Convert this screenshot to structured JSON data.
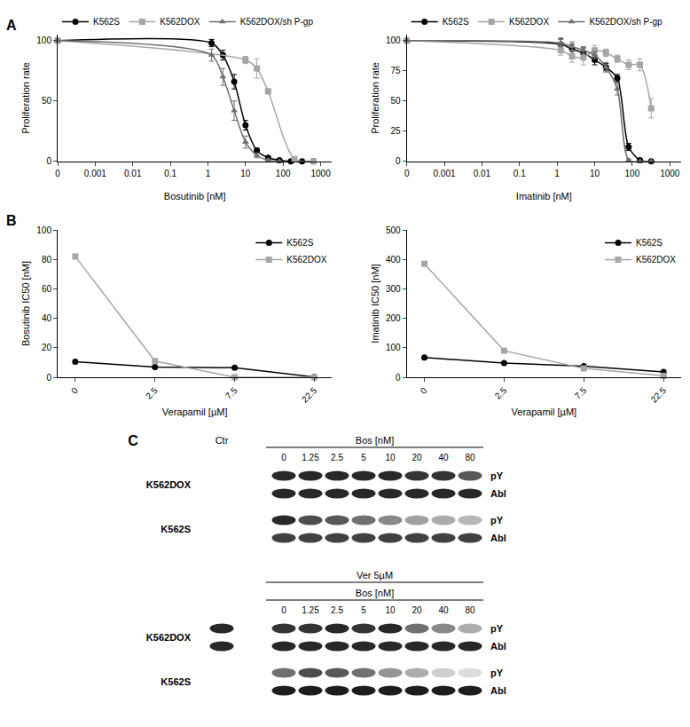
{
  "chart_data": [
    {
      "panel": "A",
      "type": "line",
      "x_label": "Bosutinib [nM]",
      "y_label": "Proliferation rate",
      "log": "x",
      "grid": false,
      "legend": "top",
      "line_style": "smooth",
      "xlim": [
        0.0001,
        2000
      ],
      "xticks": [
        {
          "value": 0.0001,
          "label": "0"
        },
        0.001,
        0.01,
        0.1,
        1,
        10,
        100,
        1000
      ],
      "ylim": [
        0,
        105
      ],
      "yticks": [
        0,
        50,
        100
      ],
      "series": [
        {
          "name": "K562S",
          "color": "#000000",
          "marker": "circle",
          "x": [
            0.0001,
            1.25,
            2.5,
            5,
            10,
            20,
            40,
            80,
            160,
            320,
            640
          ],
          "values": [
            100,
            98,
            88,
            66,
            30,
            9,
            3,
            1,
            0,
            0,
            0
          ],
          "errors": [
            0,
            3,
            4,
            6,
            4,
            2,
            1,
            1,
            0,
            0,
            0
          ]
        },
        {
          "name": "K562DOX",
          "color": "#a6a6a6",
          "marker": "square",
          "x": [
            0.0001,
            10,
            20,
            40,
            200,
            640
          ],
          "values": [
            100,
            84,
            77,
            58,
            2,
            0
          ],
          "errors": [
            0,
            3,
            8,
            2,
            1,
            0
          ]
        },
        {
          "name": "K562DOX/sh P-gp",
          "color": "#6e6e6e",
          "marker": "triangle",
          "x": [
            0.0001,
            1.25,
            2.5,
            5,
            10,
            20,
            40,
            80
          ],
          "values": [
            100,
            88,
            70,
            42,
            16,
            5,
            1,
            0
          ],
          "errors": [
            0,
            5,
            7,
            8,
            5,
            2,
            1,
            0
          ]
        }
      ]
    },
    {
      "panel": "A",
      "type": "line",
      "x_label": "Imatinib [nM]",
      "y_label": "Proliferation rate",
      "log": "x",
      "grid": false,
      "legend": "top",
      "line_style": "smooth",
      "xlim": [
        0.0001,
        2000
      ],
      "xticks": [
        {
          "value": 0.0001,
          "label": "0"
        },
        0.001,
        0.01,
        0.1,
        1,
        10,
        100,
        1000
      ],
      "ylim": [
        0,
        105
      ],
      "yticks": [
        0,
        25,
        50,
        75,
        100
      ],
      "series": [
        {
          "name": "K562S",
          "color": "#000000",
          "marker": "circle",
          "x": [
            0.0001,
            1.25,
            2.5,
            5,
            10,
            20,
            40,
            80,
            160,
            320
          ],
          "values": [
            100,
            97,
            93,
            90,
            84,
            78,
            69,
            12,
            1,
            0
          ],
          "errors": [
            0,
            5,
            4,
            4,
            4,
            3,
            3,
            3,
            1,
            0
          ]
        },
        {
          "name": "K562DOX",
          "color": "#a6a6a6",
          "marker": "square",
          "x": [
            0.0001,
            1.25,
            2.5,
            5,
            10,
            20,
            40,
            80,
            160,
            320
          ],
          "values": [
            100,
            92,
            87,
            86,
            92,
            90,
            85,
            80,
            80,
            44
          ],
          "errors": [
            0,
            4,
            5,
            6,
            4,
            3,
            3,
            4,
            5,
            8
          ]
        },
        {
          "name": "K562DOX/sh P-gp",
          "color": "#6e6e6e",
          "marker": "triangle",
          "x": [
            0.0001,
            1.25,
            2.5,
            5,
            10,
            20,
            40,
            80,
            160,
            320
          ],
          "values": [
            100,
            98,
            95,
            92,
            88,
            78,
            60,
            1,
            0,
            0
          ],
          "errors": [
            0,
            3,
            4,
            3,
            3,
            4,
            5,
            1,
            0,
            0
          ]
        }
      ]
    },
    {
      "panel": "B",
      "type": "line",
      "x_label": "Verapamil [µM]",
      "y_label": "Bosutinib IC50 [nM]",
      "grid": false,
      "legend": "upper right",
      "line_style": "straight",
      "categories": [
        "0",
        "2.5",
        "7.5",
        "22.5"
      ],
      "ylim": [
        0,
        100
      ],
      "yticks": [
        0,
        20,
        40,
        60,
        80,
        100
      ],
      "series": [
        {
          "name": "K562S",
          "color": "#000000",
          "marker": "circle",
          "values": [
            10.5,
            7,
            6.5,
            0.2
          ]
        },
        {
          "name": "K562DOX",
          "color": "#a6a6a6",
          "marker": "square",
          "values": [
            82,
            11,
            0,
            0
          ]
        }
      ]
    },
    {
      "panel": "B",
      "type": "line",
      "x_label": "Verapamil [µM]",
      "y_label": "Imatinib IC50 [nM]",
      "grid": false,
      "legend": "upper right",
      "line_style": "straight",
      "categories": [
        "0",
        "2.5",
        "7.5",
        "22.5"
      ],
      "ylim": [
        0,
        500
      ],
      "yticks": [
        0,
        100,
        200,
        300,
        400,
        500
      ],
      "series": [
        {
          "name": "K562S",
          "color": "#000000",
          "marker": "circle",
          "values": [
            67,
            48,
            38,
            18
          ]
        },
        {
          "name": "K562DOX",
          "color": "#a6a6a6",
          "marker": "square",
          "values": [
            385,
            90,
            30,
            5
          ]
        }
      ]
    }
  ],
  "blot": {
    "panel": "C",
    "control_label": "Ctr",
    "groups": [
      {
        "header": "Bos [nM]",
        "doses": [
          0,
          1.25,
          2.5,
          5,
          10,
          20,
          40,
          80
        ],
        "show_control_label": true,
        "rows": [
          {
            "cell_line": "K562DOX",
            "bands": [
              {
                "label": "pY",
                "intensity": [
                  null,
                  0.9,
                  0.9,
                  0.9,
                  0.9,
                  0.9,
                  0.85,
                  0.85,
                  0.7
                ]
              },
              {
                "label": "Abl",
                "intensity": [
                  null,
                  0.9,
                  0.9,
                  0.9,
                  0.9,
                  0.9,
                  0.9,
                  0.9,
                  0.9
                ]
              }
            ]
          },
          {
            "cell_line": "K562S",
            "bands": [
              {
                "label": "pY",
                "intensity": [
                  null,
                  0.9,
                  0.75,
                  0.7,
                  0.6,
                  0.5,
                  0.4,
                  0.35,
                  0.3
                ]
              },
              {
                "label": "Abl",
                "intensity": [
                  null,
                  0.8,
                  0.8,
                  0.8,
                  0.8,
                  0.8,
                  0.8,
                  0.8,
                  0.8
                ]
              }
            ]
          }
        ]
      },
      {
        "treatment": "Ver 5µM",
        "header": "Bos [nM]",
        "doses": [
          0,
          1.25,
          2.5,
          5,
          10,
          20,
          40,
          80
        ],
        "show_control_label": false,
        "rows": [
          {
            "cell_line": "K562DOX",
            "bands": [
              {
                "label": "pY",
                "intensity": [
                  0.9,
                  0.85,
                  0.85,
                  0.9,
                  0.85,
                  0.9,
                  0.6,
                  0.5,
                  0.35
                ]
              },
              {
                "label": "Abl",
                "intensity": [
                  0.9,
                  0.9,
                  0.9,
                  0.9,
                  0.9,
                  0.9,
                  0.9,
                  0.9,
                  0.9
                ]
              }
            ]
          },
          {
            "cell_line": "K562S",
            "bands": [
              {
                "label": "pY",
                "intensity": [
                  null,
                  0.6,
                  0.75,
                  0.7,
                  0.6,
                  0.45,
                  0.35,
                  0.2,
                  0.15
                ]
              },
              {
                "label": "Abl",
                "intensity": [
                  null,
                  0.95,
                  0.95,
                  0.95,
                  0.95,
                  0.95,
                  0.95,
                  0.95,
                  0.95
                ]
              }
            ]
          }
        ]
      }
    ]
  }
}
